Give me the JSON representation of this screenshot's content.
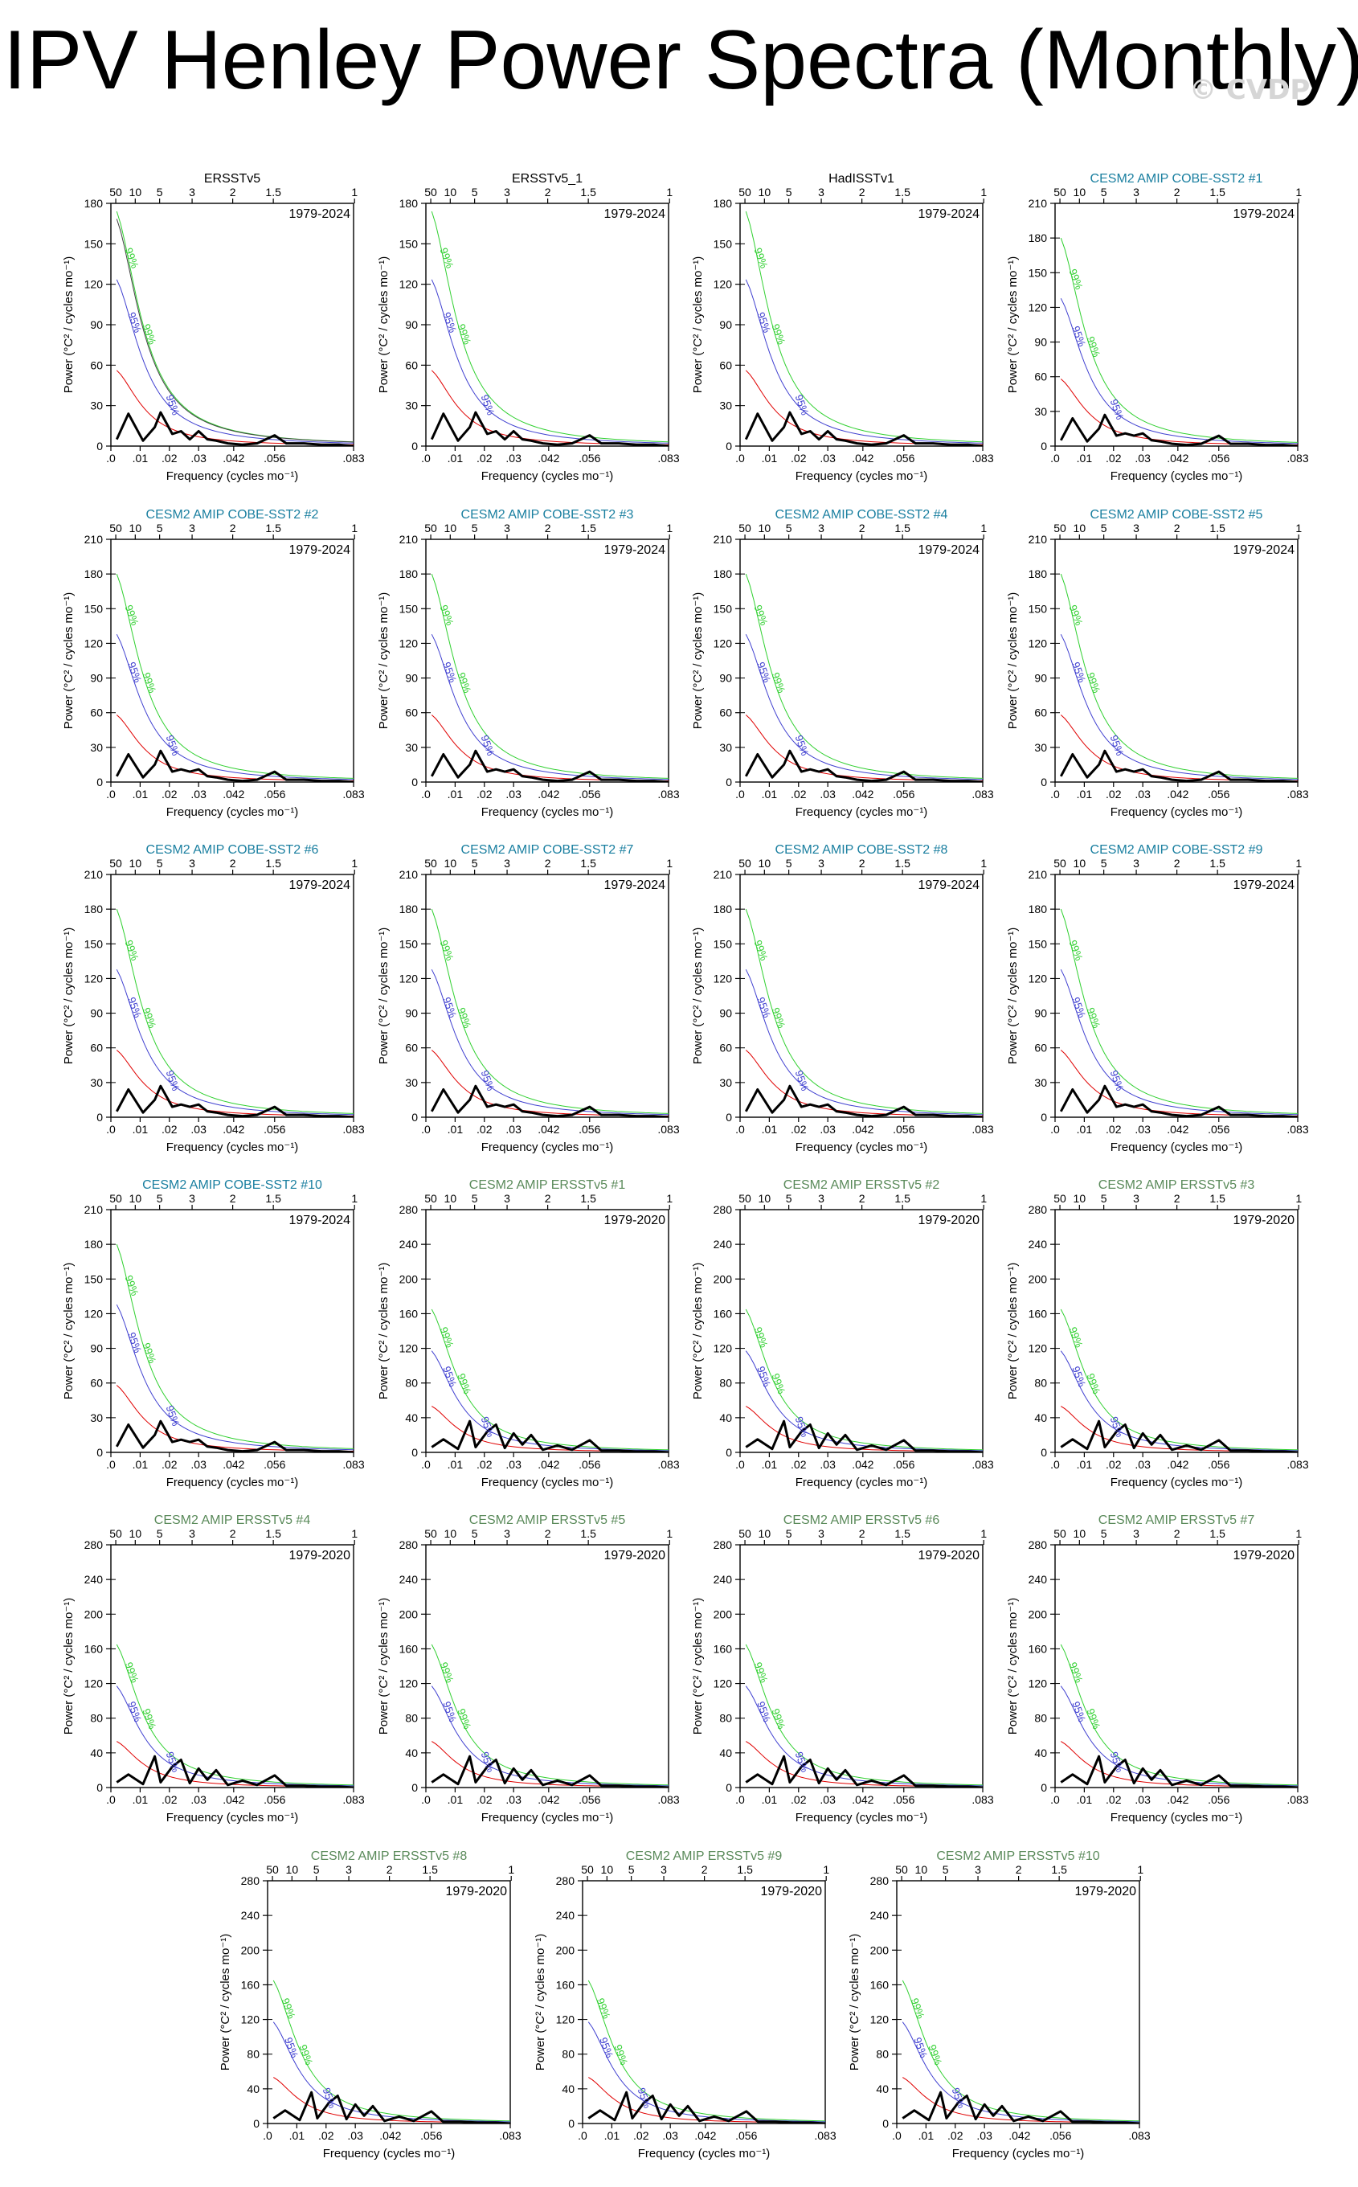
{
  "page": {
    "title": "IPV Henley Power Spectra (Monthly)",
    "watermark": "© CVDP"
  },
  "chart_data": [
    {
      "type": "line",
      "title": "ERSSTv5",
      "title_color": "#000000",
      "period": "1979-2024",
      "ylim": [
        0,
        180
      ],
      "yticks": [
        0,
        30,
        60,
        90,
        120,
        150,
        180
      ],
      "family": "A",
      "obs": true
    },
    {
      "type": "line",
      "title": "ERSSTv5_1",
      "title_color": "#000000",
      "period": "1979-2024",
      "ylim": [
        0,
        180
      ],
      "yticks": [
        0,
        30,
        60,
        90,
        120,
        150,
        180
      ],
      "family": "A"
    },
    {
      "type": "line",
      "title": "HadISSTv1",
      "title_color": "#000000",
      "period": "1979-2024",
      "ylim": [
        0,
        180
      ],
      "yticks": [
        0,
        30,
        60,
        90,
        120,
        150,
        180
      ],
      "family": "A"
    },
    {
      "type": "line",
      "title": "CESM2 AMIP COBE-SST2 #1",
      "title_color": "#1a7fa0",
      "period": "1979-2024",
      "ylim": [
        0,
        210
      ],
      "yticks": [
        0,
        30,
        60,
        90,
        120,
        150,
        180,
        210
      ],
      "family": "B"
    },
    {
      "type": "line",
      "title": "CESM2 AMIP COBE-SST2 #2",
      "title_color": "#1a7fa0",
      "period": "1979-2024",
      "ylim": [
        0,
        210
      ],
      "yticks": [
        0,
        30,
        60,
        90,
        120,
        150,
        180,
        210
      ],
      "family": "B"
    },
    {
      "type": "line",
      "title": "CESM2 AMIP COBE-SST2 #3",
      "title_color": "#1a7fa0",
      "period": "1979-2024",
      "ylim": [
        0,
        210
      ],
      "yticks": [
        0,
        30,
        60,
        90,
        120,
        150,
        180,
        210
      ],
      "family": "B"
    },
    {
      "type": "line",
      "title": "CESM2 AMIP COBE-SST2 #4",
      "title_color": "#1a7fa0",
      "period": "1979-2024",
      "ylim": [
        0,
        210
      ],
      "yticks": [
        0,
        30,
        60,
        90,
        120,
        150,
        180,
        210
      ],
      "family": "B"
    },
    {
      "type": "line",
      "title": "CESM2 AMIP COBE-SST2 #5",
      "title_color": "#1a7fa0",
      "period": "1979-2024",
      "ylim": [
        0,
        210
      ],
      "yticks": [
        0,
        30,
        60,
        90,
        120,
        150,
        180,
        210
      ],
      "family": "B"
    },
    {
      "type": "line",
      "title": "CESM2 AMIP COBE-SST2 #6",
      "title_color": "#1a7fa0",
      "period": "1979-2024",
      "ylim": [
        0,
        210
      ],
      "yticks": [
        0,
        30,
        60,
        90,
        120,
        150,
        180,
        210
      ],
      "family": "B"
    },
    {
      "type": "line",
      "title": "CESM2 AMIP COBE-SST2 #7",
      "title_color": "#1a7fa0",
      "period": "1979-2024",
      "ylim": [
        0,
        210
      ],
      "yticks": [
        0,
        30,
        60,
        90,
        120,
        150,
        180,
        210
      ],
      "family": "B"
    },
    {
      "type": "line",
      "title": "CESM2 AMIP COBE-SST2 #8",
      "title_color": "#1a7fa0",
      "period": "1979-2024",
      "ylim": [
        0,
        210
      ],
      "yticks": [
        0,
        30,
        60,
        90,
        120,
        150,
        180,
        210
      ],
      "family": "B"
    },
    {
      "type": "line",
      "title": "CESM2 AMIP COBE-SST2 #9",
      "title_color": "#1a7fa0",
      "period": "1979-2024",
      "ylim": [
        0,
        210
      ],
      "yticks": [
        0,
        30,
        60,
        90,
        120,
        150,
        180,
        210
      ],
      "family": "B"
    },
    {
      "type": "line",
      "title": "CESM2 AMIP COBE-SST2 #10",
      "title_color": "#1a7fa0",
      "period": "1979-2024",
      "ylim": [
        0,
        210
      ],
      "yticks": [
        0,
        30,
        60,
        90,
        120,
        150,
        180,
        210
      ],
      "family": "B"
    },
    {
      "type": "line",
      "title": "CESM2 AMIP ERSSTv5 #1",
      "title_color": "#5a8a5a",
      "period": "1979-2020",
      "ylim": [
        0,
        280
      ],
      "yticks": [
        0,
        40,
        80,
        120,
        160,
        200,
        240,
        280
      ],
      "family": "C"
    },
    {
      "type": "line",
      "title": "CESM2 AMIP ERSSTv5 #2",
      "title_color": "#5a8a5a",
      "period": "1979-2020",
      "ylim": [
        0,
        280
      ],
      "yticks": [
        0,
        40,
        80,
        120,
        160,
        200,
        240,
        280
      ],
      "family": "C"
    },
    {
      "type": "line",
      "title": "CESM2 AMIP ERSSTv5 #3",
      "title_color": "#5a8a5a",
      "period": "1979-2020",
      "ylim": [
        0,
        280
      ],
      "yticks": [
        0,
        40,
        80,
        120,
        160,
        200,
        240,
        280
      ],
      "family": "C"
    },
    {
      "type": "line",
      "title": "CESM2 AMIP ERSSTv5 #4",
      "title_color": "#5a8a5a",
      "period": "1979-2020",
      "ylim": [
        0,
        280
      ],
      "yticks": [
        0,
        40,
        80,
        120,
        160,
        200,
        240,
        280
      ],
      "family": "C"
    },
    {
      "type": "line",
      "title": "CESM2 AMIP ERSSTv5 #5",
      "title_color": "#5a8a5a",
      "period": "1979-2020",
      "ylim": [
        0,
        280
      ],
      "yticks": [
        0,
        40,
        80,
        120,
        160,
        200,
        240,
        280
      ],
      "family": "C"
    },
    {
      "type": "line",
      "title": "CESM2 AMIP ERSSTv5 #6",
      "title_color": "#5a8a5a",
      "period": "1979-2020",
      "ylim": [
        0,
        280
      ],
      "yticks": [
        0,
        40,
        80,
        120,
        160,
        200,
        240,
        280
      ],
      "family": "C"
    },
    {
      "type": "line",
      "title": "CESM2 AMIP ERSSTv5 #7",
      "title_color": "#5a8a5a",
      "period": "1979-2020",
      "ylim": [
        0,
        280
      ],
      "yticks": [
        0,
        40,
        80,
        120,
        160,
        200,
        240,
        280
      ],
      "family": "C"
    },
    {
      "type": "line",
      "title": "CESM2 AMIP ERSSTv5 #8",
      "title_color": "#5a8a5a",
      "period": "1979-2020",
      "ylim": [
        0,
        280
      ],
      "yticks": [
        0,
        40,
        80,
        120,
        160,
        200,
        240,
        280
      ],
      "family": "C"
    },
    {
      "type": "line",
      "title": "CESM2 AMIP ERSSTv5 #9",
      "title_color": "#5a8a5a",
      "period": "1979-2020",
      "ylim": [
        0,
        280
      ],
      "yticks": [
        0,
        40,
        80,
        120,
        160,
        200,
        240,
        280
      ],
      "family": "C"
    },
    {
      "type": "line",
      "title": "CESM2 AMIP ERSSTv5 #10",
      "title_color": "#5a8a5a",
      "period": "1979-2020",
      "ylim": [
        0,
        280
      ],
      "yticks": [
        0,
        40,
        80,
        120,
        160,
        200,
        240,
        280
      ],
      "family": "C"
    }
  ],
  "axes": {
    "xlabel": "Frequency (cycles mo⁻¹)",
    "ylabel": "Power (°C² / cycles mo⁻¹)",
    "xlim": [
      0,
      0.083
    ],
    "xticks": [
      0,
      0.01,
      0.02,
      0.03,
      0.042,
      0.056,
      0.083
    ],
    "xtick_labels": [
      ".0",
      ".01",
      ".02",
      ".03",
      ".042",
      ".056",
      ".083"
    ],
    "top_axis_periods_years": [
      50,
      10,
      5,
      3,
      2,
      1.5,
      1
    ],
    "top_axis_labels": [
      "50",
      "10",
      "5",
      "3",
      "2",
      "1.5",
      "1"
    ]
  },
  "series_styles": {
    "spectrum": {
      "color": "#000000",
      "width": 3
    },
    "red_noise": {
      "color": "#e00000",
      "width": 1
    },
    "ci95": {
      "color": "#4040d0",
      "width": 1,
      "label": "95%"
    },
    "ci99": {
      "color": "#30d030",
      "width": 1,
      "label": "99%"
    },
    "obs_line": {
      "color": "#404040",
      "width": 1
    }
  },
  "spectra": {
    "freq": [
      0.002,
      0.006,
      0.011,
      0.015,
      0.017,
      0.021,
      0.024,
      0.027,
      0.03,
      0.033,
      0.036,
      0.04,
      0.045,
      0.05,
      0.056,
      0.06,
      0.066,
      0.072,
      0.078,
      0.083
    ],
    "A": [
      5,
      24,
      4,
      14,
      25,
      9,
      11,
      5,
      11,
      5,
      4,
      2,
      1,
      2,
      8,
      2,
      2,
      1,
      1,
      0
    ],
    "B": [
      5,
      24,
      4,
      15,
      27,
      9,
      11,
      9,
      11,
      5,
      4,
      2,
      1,
      2,
      9,
      2,
      2,
      1,
      1,
      0
    ],
    "C": [
      6,
      15,
      4,
      36,
      6,
      24,
      32,
      5,
      22,
      9,
      20,
      3,
      8,
      3,
      14,
      2,
      2,
      1,
      1,
      0
    ]
  },
  "reference_peaks": {
    "A": 58,
    "B": 60,
    "C": 55
  }
}
